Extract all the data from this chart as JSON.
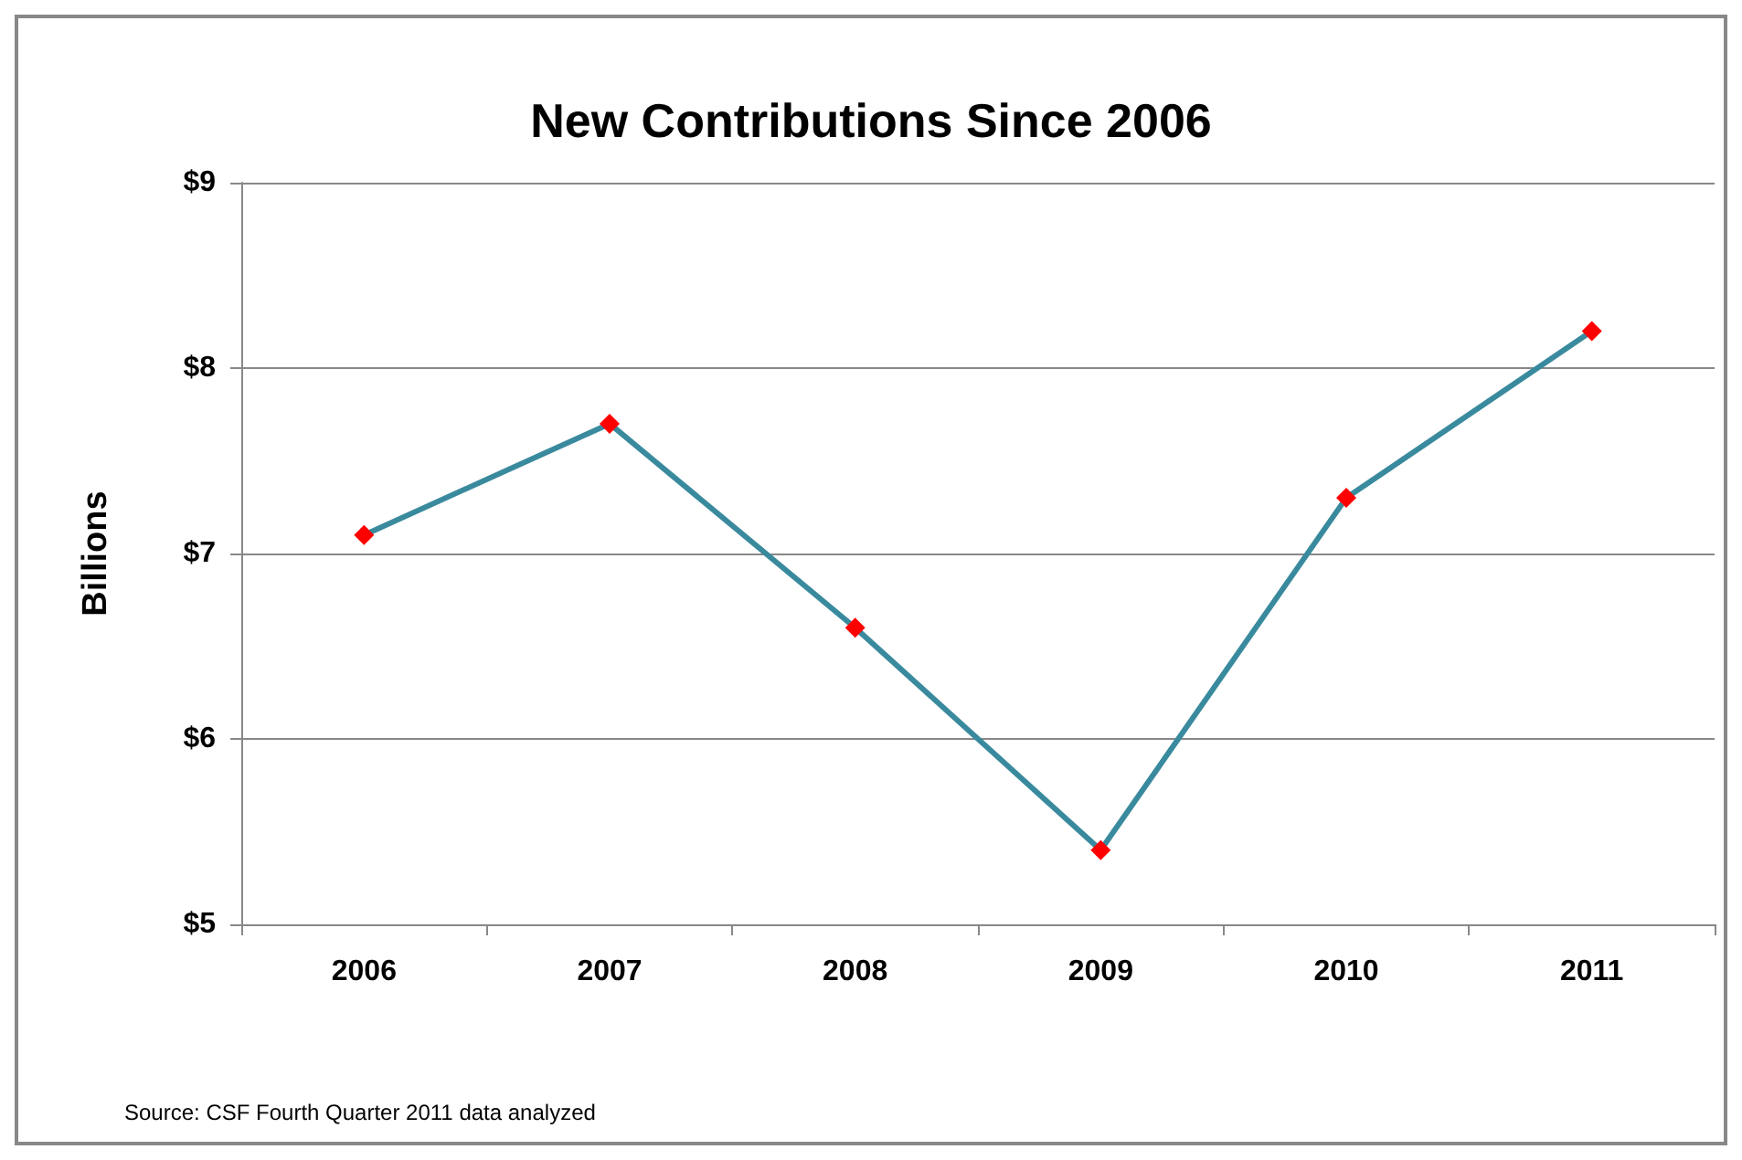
{
  "chart_data": {
    "type": "line",
    "title": "New Contributions Since 2006",
    "ylabel": "Billions",
    "categories": [
      "2006",
      "2007",
      "2008",
      "2009",
      "2010",
      "2011"
    ],
    "series": [
      {
        "color": "#3a8a9e",
        "colors": [
          "#ff0000",
          "#ff0000",
          "#ff0000",
          "#ff0000",
          "#ff0000",
          "#ff0000"
        ],
        "values": [
          7.1,
          7.7,
          6.6,
          5.4,
          7.3,
          8.2
        ]
      }
    ],
    "ylim": [
      5,
      9
    ],
    "yticks": [
      {
        "value": 5,
        "label": "$5"
      },
      {
        "value": 6,
        "label": "$6"
      },
      {
        "value": 7,
        "label": "$7"
      },
      {
        "value": 8,
        "label": "$8"
      },
      {
        "value": 9,
        "label": "$9"
      }
    ],
    "grid": "y",
    "marker": "diamond",
    "line_style": "solid",
    "annotations": [
      "Source: CSF Fourth Quarter 2011 data analyzed"
    ]
  }
}
